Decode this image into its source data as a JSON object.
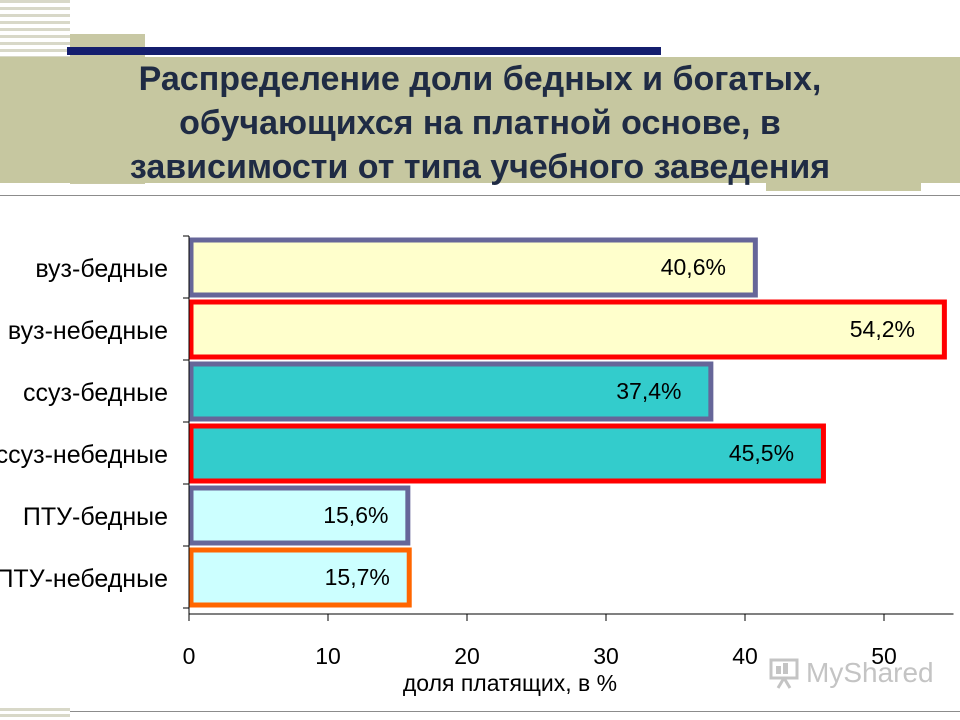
{
  "title_lines": [
    "Распределение  доли бедных и  богатых,",
    "обучающихся  на  платной  основе, в",
    "зависимости от  типа учебного  заведения"
  ],
  "watermark": "MyShared",
  "chart_data": {
    "type": "bar",
    "orientation": "horizontal",
    "categories": [
      "вуз-бедные",
      "вуз-небедные",
      "ссуз-бедные",
      "ссуз-небедные",
      "ПТУ-бедные",
      "ПТУ-небедные"
    ],
    "values": [
      40.6,
      54.2,
      37.4,
      45.5,
      15.6,
      15.7
    ],
    "data_labels": [
      "40,6%",
      "54,2%",
      "37,4%",
      "45,5%",
      "15,6%",
      "15,7%"
    ],
    "xlabel": "доля платящих, в  %",
    "xlim": [
      0,
      55
    ],
    "xticks": [
      0,
      10,
      20,
      30,
      40,
      50
    ],
    "grid": false,
    "bar_fill_colors": [
      "#ffffcc",
      "#ffffcc",
      "#33cccc",
      "#33cccc",
      "#ccffff",
      "#ccffff"
    ],
    "bar_border_colors": [
      "#666699",
      "#ff0000",
      "#666699",
      "#ff0000",
      "#666699",
      "#ff6600"
    ]
  }
}
